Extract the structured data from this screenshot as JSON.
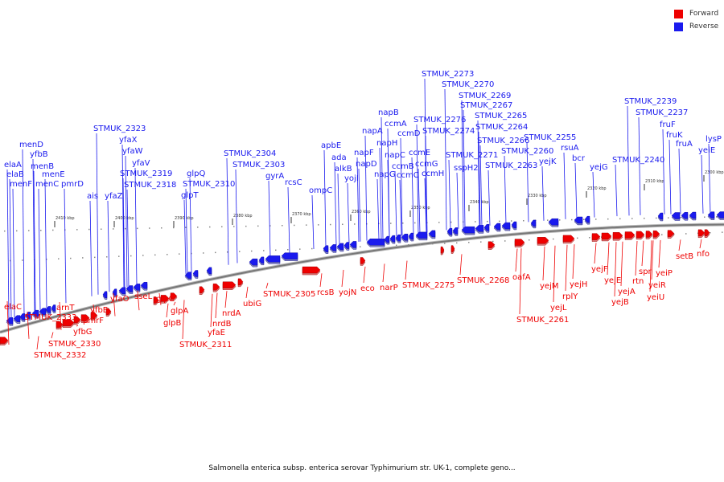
{
  "caption": "Salmonella enterica subsp. enterica serovar Typhimurium str. UK-1, complete geno...",
  "legend": [
    {
      "label": "Forward",
      "color": "#ee0000"
    },
    {
      "label": "Reverse",
      "color": "#1a1aee"
    }
  ],
  "colors": {
    "forward": "#ee0000",
    "reverse": "#1a1aee",
    "backbone": "#777777"
  },
  "ticks": [
    "2410 kbp",
    "2400 kbp",
    "2390 kbp",
    "2380 kbp",
    "2370 kbp",
    "2360 kbp",
    "2350 kbp",
    "2340 kbp",
    "2330 kbp",
    "2320 kbp",
    "2310 kbp",
    "2300 kbp"
  ],
  "reverse_labels": [
    "menF",
    "elaB",
    "elaA",
    "menD",
    "yfbB",
    "menB",
    "menE",
    "menC",
    "pmrD",
    "ais",
    "yfaZ",
    "STMUK_2323",
    "yfaX",
    "yfaW",
    "yfaV",
    "STMUK_2319",
    "STMUK_2318",
    "glpQ",
    "glpT",
    "STMUK_2310",
    "STMUK_2304",
    "STMUK_2303",
    "gyrA",
    "rcsC",
    "ompC",
    "apbE",
    "ada",
    "alkB",
    "yojI",
    "napF",
    "napD",
    "napA",
    "napB",
    "napH",
    "napG",
    "ccmA",
    "napC",
    "ccmB",
    "ccmD",
    "ccmC",
    "ccmE",
    "ccmG",
    "ccmH",
    "STMUK_2276",
    "STMUK_2274",
    "STMUK_2273",
    "STMUK_2270",
    "STMUK_2269",
    "STMUK_2267",
    "STMUK_2265",
    "STMUK_2264",
    "STMUK_2266",
    "STMUK_2271",
    "sspH2",
    "STMUK_2263",
    "STMUK_2260",
    "STMUK_2255",
    "yejK",
    "rsuA",
    "bcr",
    "yejG",
    "STMUK_2240",
    "STMUK_2239",
    "STMUK_2237",
    "fruF",
    "fruK",
    "fruA",
    "yeiE",
    "lysP"
  ],
  "forward_labels": [
    "elaC",
    "arnT",
    "STMUK_2333",
    "yfbG",
    "STMUK_2330",
    "STMUK_2332",
    "pmrF",
    "yfbE",
    "yfaO",
    "sseL",
    "glpC",
    "glpA",
    "glpB",
    "yfaE",
    "nrdB",
    "STMUK_2311",
    "nrdA",
    "ubiG",
    "STMUK_2305",
    "rcsB",
    "yojN",
    "eco",
    "narP",
    "STMUK_2275",
    "STMUK_2268",
    "oafA",
    "yejM",
    "yejL",
    "STMUK_2261",
    "yejH",
    "rplY",
    "yejF",
    "yejE",
    "yejA",
    "yejB",
    "rtn",
    "spr",
    "yeiR",
    "yeiU",
    "yeiP",
    "setB",
    "nfo"
  ]
}
